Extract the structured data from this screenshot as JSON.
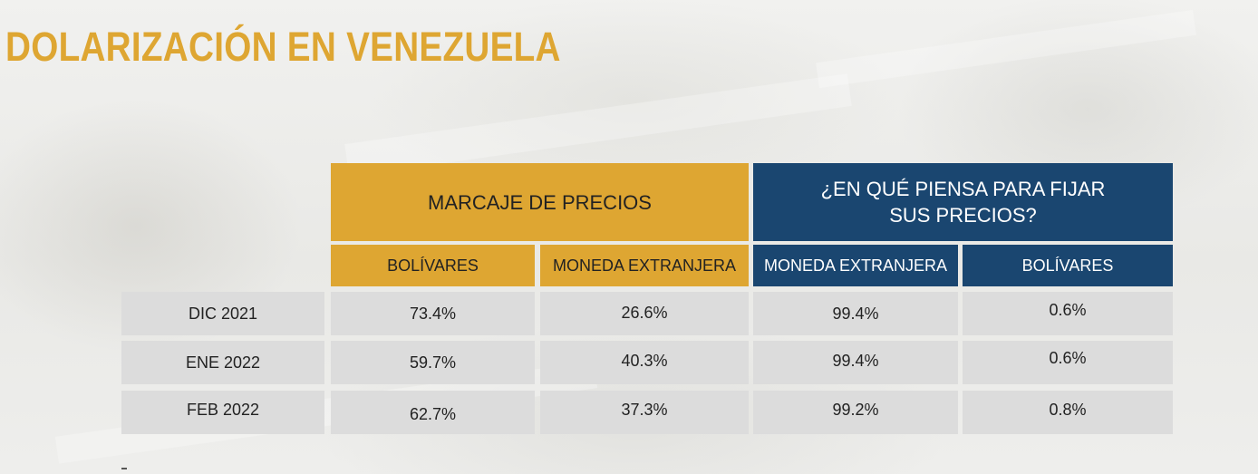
{
  "title": "DOLARIZACIÓN EN VENEZUELA",
  "colors": {
    "gold": "#dea632",
    "navy": "#1a4670",
    "row": "#dcdcdc"
  },
  "table": {
    "group_headers": [
      "MARCAJE DE PRECIOS",
      "¿EN QUÉ PIENSA PARA FIJAR SUS PRECIOS?"
    ],
    "group_header_lines": {
      "line1": "¿EN QUÉ PIENSA PARA FIJAR",
      "line2": "SUS PRECIOS?"
    },
    "sub_headers": [
      "BOLÍVARES",
      "MONEDA EXTRANJERA",
      "MONEDA EXTRANJERA",
      "BOLÍVARES"
    ],
    "rows": [
      {
        "label": "DIC 2021",
        "values": [
          "73.4%",
          "26.6%",
          "99.4%",
          "0.6%"
        ]
      },
      {
        "label": "ENE 2022",
        "values": [
          "59.7%",
          "40.3%",
          "99.4%",
          "0.6%"
        ]
      },
      {
        "label": "FEB 2022",
        "values": [
          "62.7%",
          "37.3%",
          "99.2%",
          "0.8%"
        ]
      }
    ]
  }
}
